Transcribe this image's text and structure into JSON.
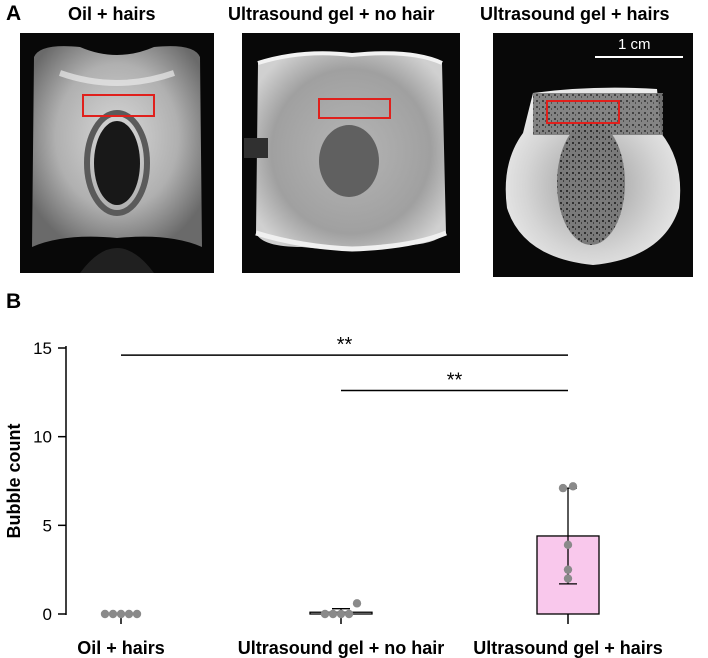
{
  "panel_a": {
    "letter": "A",
    "images": [
      {
        "title": "Oil + hairs"
      },
      {
        "title": "Ultrasound gel + no hair"
      },
      {
        "title": "Ultrasound gel + hairs"
      }
    ],
    "scale_bar": "1 cm",
    "roi_color": "#e0201c"
  },
  "panel_b": {
    "letter": "B"
  },
  "chart_data": {
    "type": "bar",
    "categories": [
      "Oil + hairs",
      "Ultrasound gel + no hair",
      "Ultrasound gel + hairs"
    ],
    "values": [
      0,
      0.1,
      4.4
    ],
    "error": [
      0,
      0.2,
      2.7
    ],
    "points": [
      [
        0,
        0,
        0,
        0,
        0
      ],
      [
        0,
        0,
        0,
        0,
        0.6
      ],
      [
        2.0,
        2.5,
        3.9,
        7.1,
        7.2
      ]
    ],
    "ylabel": "Bubble count",
    "xlabel": "",
    "ylim": [
      0,
      15
    ],
    "yticks": [
      0,
      5,
      10,
      15
    ],
    "bar_colors": [
      "#ffffff",
      "#ffffff",
      "#f9c8ec"
    ],
    "point_color": "#8a8a8a",
    "significance": [
      {
        "from": 0,
        "to": 2,
        "label": "**",
        "y": 14.6
      },
      {
        "from": 1,
        "to": 2,
        "label": "**",
        "y": 12.6
      }
    ],
    "grid": false
  }
}
